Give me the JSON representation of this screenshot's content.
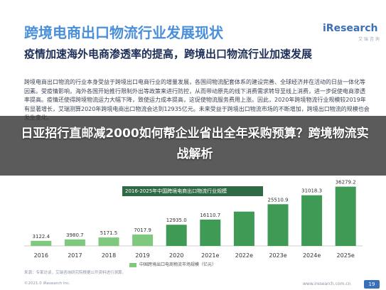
{
  "header": {
    "report_title": "跨境电商出口物流行业发展现状",
    "logo_brand": "iResearch",
    "logo_sub": "艾 瑞 咨 询"
  },
  "section_heading": "疫情加速海外电商渗透率的提高，跨境出口物流行业加速发展",
  "body_text": "跨境电商出口物流的行业本身受益于跨境出口电商行业的增量发展，各国间物流配套体系的建设完善、全球经济并在活动的日益一体化等因素。受疫情影响，海外各国开始推行限制外出等政策来进行防控，从而带动原先的线下消费需求转导至线上消费，进一步促使电商渗透率提高。疫情还使得跨境物流运力大幅下降，致使运力成本提高，这促使物流服务费用上涨。因此，2020年跨境物流行业规模较2019年有显著增长，艾瑞测算2020年跨境电商出口物流会达到12935亿元。未来受益于跨境出口物流市场的不断增加，跨境出口物流的规模也会发生变化。",
  "banner": {
    "text": "日亚招行直邮减2000如何帮企业省出全年采购预算？跨境物流实战解析"
  },
  "chart_data": {
    "type": "bar",
    "title": "2016-2025年中国跨境电商出口物流行业规模",
    "categories": [
      "2016",
      "2017",
      "2018",
      "2019",
      "2020",
      "2021e",
      "2022e",
      "2023e",
      "2024e",
      "2025e"
    ],
    "series": [
      {
        "name": "中国跨境出口电商物流市场规模（亿元）",
        "values": [
          3122.4,
          3980.7,
          5171.5,
          7017.9,
          12935.0,
          16110.7,
          20982.1,
          25510.9,
          31018.3,
          36279.2
        ]
      }
    ],
    "value_labels": [
      "3122.4",
      "3980.7",
      "5171.5",
      "7017.9",
      "12935.0",
      "16110.7",
      "",
      "25510.9",
      "31018.3",
      "36279.2"
    ],
    "ylim": [
      0,
      40000
    ],
    "grid": false,
    "legend": "bottom-center",
    "bar_color": "#7ec97e",
    "bar_color_highlight": "#3e9a54"
  },
  "footer": {
    "source": "来源：专家访谈，艾瑞咨询研究院根据公开资料进行测算。",
    "copyright": "©2021.0 iResearch Inc.",
    "bottom_logo": "www.iresearch.com.cn",
    "page_number": "19"
  }
}
